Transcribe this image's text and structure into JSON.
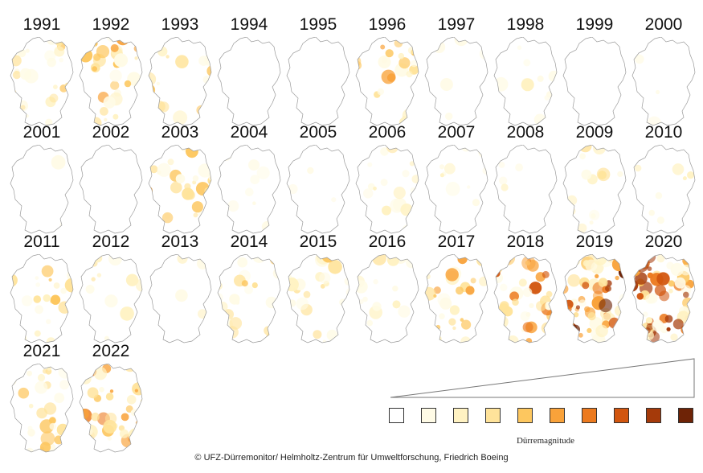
{
  "maps": [
    {
      "year": "1991",
      "level": 0.35
    },
    {
      "year": "1992",
      "level": 0.45
    },
    {
      "year": "1993",
      "level": 0.3
    },
    {
      "year": "1994",
      "level": 0.0
    },
    {
      "year": "1995",
      "level": 0.0
    },
    {
      "year": "1996",
      "level": 0.4
    },
    {
      "year": "1997",
      "level": 0.08
    },
    {
      "year": "1998",
      "level": 0.15
    },
    {
      "year": "1999",
      "level": 0.02
    },
    {
      "year": "2000",
      "level": 0.04
    },
    {
      "year": "2001",
      "level": 0.02
    },
    {
      "year": "2002",
      "level": 0.0
    },
    {
      "year": "2003",
      "level": 0.4
    },
    {
      "year": "2004",
      "level": 0.15
    },
    {
      "year": "2005",
      "level": 0.05
    },
    {
      "year": "2006",
      "level": 0.25
    },
    {
      "year": "2007",
      "level": 0.15
    },
    {
      "year": "2008",
      "level": 0.08
    },
    {
      "year": "2009",
      "level": 0.2
    },
    {
      "year": "2010",
      "level": 0.1
    },
    {
      "year": "2011",
      "level": 0.3
    },
    {
      "year": "2012",
      "level": 0.2
    },
    {
      "year": "2013",
      "level": 0.06
    },
    {
      "year": "2014",
      "level": 0.3
    },
    {
      "year": "2015",
      "level": 0.35
    },
    {
      "year": "2016",
      "level": 0.25
    },
    {
      "year": "2017",
      "level": 0.4
    },
    {
      "year": "2018",
      "level": 0.65
    },
    {
      "year": "2019",
      "level": 0.9
    },
    {
      "year": "2020",
      "level": 0.85
    },
    {
      "year": "2021",
      "level": 0.45
    },
    {
      "year": "2022",
      "level": 0.6
    }
  ],
  "legend": {
    "title": "Dürremagnitude",
    "colors": [
      "#ffffff",
      "#fffbe6",
      "#fff2c2",
      "#ffe39a",
      "#fdc75f",
      "#f9a23a",
      "#ec7a1f",
      "#d2560f",
      "#a53a0a",
      "#6e2306"
    ]
  },
  "credit": "© UFZ-Dürremonitor/ Helmholtz-Zentrum für Umweltforschung, Friedrich Boeing"
}
